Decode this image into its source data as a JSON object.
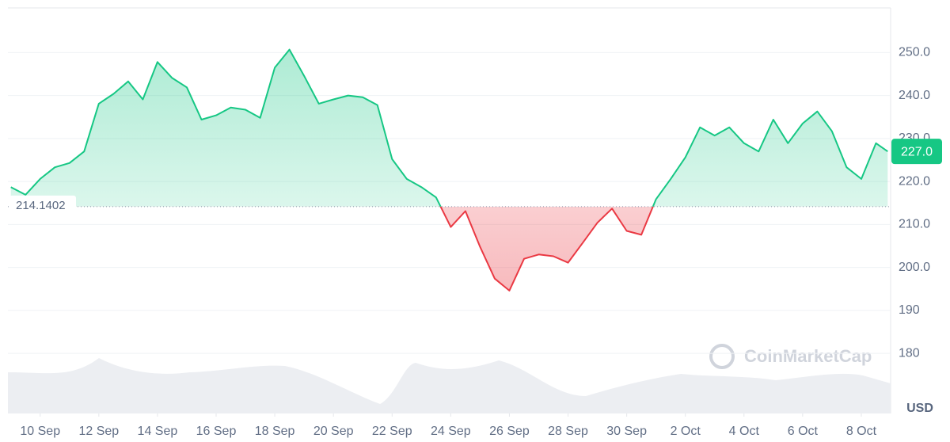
{
  "chart_data": {
    "type": "area",
    "series": [
      {
        "color_up": "#16c784",
        "color_down": "#ea3943",
        "x": [
          9,
          9.5,
          10,
          10.5,
          11,
          11.5,
          12,
          12.5,
          13,
          13.5,
          14,
          14.5,
          15,
          15.5,
          16,
          16.5,
          17,
          17.5,
          18,
          18.5,
          19,
          19.5,
          20,
          20.5,
          21,
          21.5,
          22,
          22.5,
          23,
          23.5,
          24,
          24.5,
          25,
          25.5,
          26,
          26.5,
          27,
          27.5,
          28,
          28.5,
          29,
          29.5,
          30,
          30.5,
          31,
          31.5,
          32,
          32.5,
          33,
          33.5,
          34,
          34.5,
          35,
          35.5,
          36,
          36.5,
          37,
          37.5,
          38,
          38.5,
          38.9
        ],
        "values": [
          218.7,
          216.9,
          220.6,
          223.3,
          224.3,
          227,
          238.1,
          240.4,
          243.3,
          239.1,
          247.8,
          244.1,
          241.9,
          234.4,
          235.4,
          237.2,
          236.7,
          234.8,
          246.5,
          250.7,
          244.6,
          238.1,
          239.1,
          240,
          239.6,
          237.8,
          225.2,
          220.6,
          218.7,
          216.3,
          209.4,
          213.1,
          204.8,
          197.4,
          194.6,
          202,
          203,
          202.6,
          201.1,
          205.7,
          210.4,
          213.7,
          208.5,
          207.6,
          215.9,
          220.6,
          225.6,
          232.6,
          230.7,
          232.6,
          228.9,
          227,
          234.4,
          228.9,
          233.5,
          236.3,
          231.7,
          223.3,
          220.6,
          228.9,
          227
        ]
      }
    ],
    "baseline": 214.1402,
    "last_price": {
      "value": 227,
      "label": "227.0"
    },
    "xlim": [
      8.9,
      39
    ],
    "ylim": [
      166,
      260.4
    ],
    "xticks": [
      {
        "value": 10,
        "label": "10 Sep"
      },
      {
        "value": 12,
        "label": "12 Sep"
      },
      {
        "value": 14,
        "label": "14 Sep"
      },
      {
        "value": 16,
        "label": "16 Sep"
      },
      {
        "value": 18,
        "label": "18 Sep"
      },
      {
        "value": 20,
        "label": "20 Sep"
      },
      {
        "value": 22,
        "label": "22 Sep"
      },
      {
        "value": 24,
        "label": "24 Sep"
      },
      {
        "value": 26,
        "label": "26 Sep"
      },
      {
        "value": 28,
        "label": "28 Sep"
      },
      {
        "value": 30,
        "label": "30 Sep"
      },
      {
        "value": 32,
        "label": "2 Oct"
      },
      {
        "value": 34,
        "label": "4 Oct"
      },
      {
        "value": 36,
        "label": "6 Oct"
      },
      {
        "value": 38,
        "label": "8 Oct"
      }
    ],
    "yticks": [
      {
        "value": 250,
        "label": "250.0"
      },
      {
        "value": 240,
        "label": "240.0"
      },
      {
        "value": 230,
        "label": "230.0"
      },
      {
        "value": 220,
        "label": "220.0"
      },
      {
        "value": 210,
        "label": "210.0"
      },
      {
        "value": 200,
        "label": "200.0"
      },
      190,
      180
    ],
    "grid": true,
    "watermark": "CoinMarketCap",
    "currency": "USD"
  }
}
